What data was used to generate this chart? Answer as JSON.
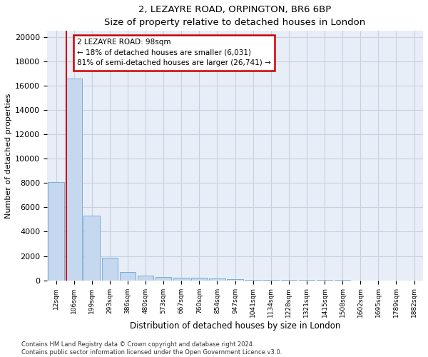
{
  "title1": "2, LEZAYRE ROAD, ORPINGTON, BR6 6BP",
  "title2": "Size of property relative to detached houses in London",
  "xlabel": "Distribution of detached houses by size in London",
  "ylabel": "Number of detached properties",
  "categories": [
    "12sqm",
    "106sqm",
    "199sqm",
    "293sqm",
    "386sqm",
    "480sqm",
    "573sqm",
    "667sqm",
    "760sqm",
    "854sqm",
    "947sqm",
    "1041sqm",
    "1134sqm",
    "1228sqm",
    "1321sqm",
    "1415sqm",
    "1508sqm",
    "1602sqm",
    "1695sqm",
    "1789sqm",
    "1882sqm"
  ],
  "bar_heights": [
    8100,
    16600,
    5300,
    1850,
    700,
    370,
    280,
    220,
    200,
    130,
    80,
    60,
    40,
    30,
    20,
    15,
    10,
    8,
    6,
    5,
    4
  ],
  "bar_color": "#c5d8f0",
  "bar_edge_color": "#7aadd4",
  "annotation_line1": "2 LEZAYRE ROAD: 98sqm",
  "annotation_line2": "← 18% of detached houses are smaller (6,031)",
  "annotation_line3": "81% of semi-detached houses are larger (26,741) →",
  "annotation_box_facecolor": "#ffffff",
  "annotation_box_edgecolor": "#cc0000",
  "property_vline_color": "#cc0000",
  "property_vline_x": 0.575,
  "ylim": [
    0,
    20500
  ],
  "yticks": [
    0,
    2000,
    4000,
    6000,
    8000,
    10000,
    12000,
    14000,
    16000,
    18000,
    20000
  ],
  "grid_color": "#c8d0e0",
  "bg_color": "#e8eef8",
  "footer1": "Contains HM Land Registry data © Crown copyright and database right 2024.",
  "footer2": "Contains public sector information licensed under the Open Government Licence v3.0."
}
